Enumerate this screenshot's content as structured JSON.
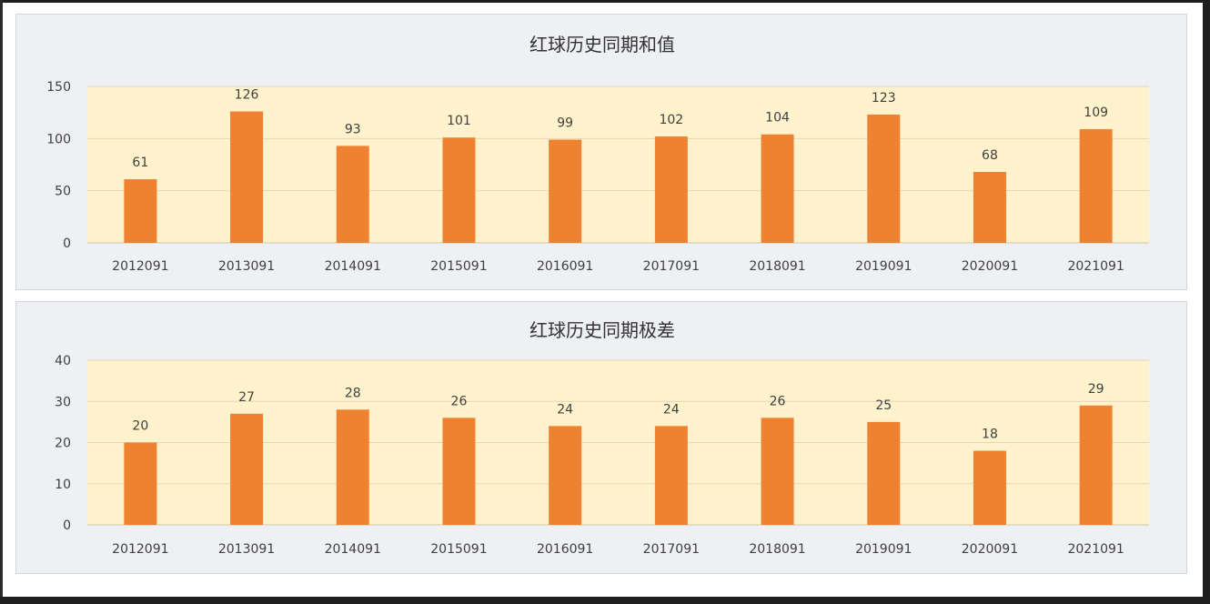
{
  "colors": {
    "bar": "#ee8230",
    "plot_bg": "#fff2cc",
    "panel_bg": "#eef0f3",
    "grid": "#e3d7b4"
  },
  "chart_data": [
    {
      "type": "bar",
      "title": "红球历史同期和值",
      "xlabel": "",
      "ylabel": "",
      "categories": [
        "2012091",
        "2013091",
        "2014091",
        "2015091",
        "2016091",
        "2017091",
        "2018091",
        "2019091",
        "2020091",
        "2021091"
      ],
      "values": [
        61,
        126,
        93,
        101,
        99,
        102,
        104,
        123,
        68,
        109
      ],
      "ylim": [
        0,
        150
      ],
      "yticks": [
        0,
        50,
        100,
        150
      ],
      "grid": true,
      "data_labels": true,
      "legend": "none"
    },
    {
      "type": "bar",
      "title": "红球历史同期极差",
      "xlabel": "",
      "ylabel": "",
      "categories": [
        "2012091",
        "2013091",
        "2014091",
        "2015091",
        "2016091",
        "2017091",
        "2018091",
        "2019091",
        "2020091",
        "2021091"
      ],
      "values": [
        20,
        27,
        28,
        26,
        24,
        24,
        26,
        25,
        18,
        29
      ],
      "ylim": [
        0,
        40
      ],
      "yticks": [
        0,
        10,
        20,
        30,
        40
      ],
      "grid": true,
      "data_labels": true,
      "legend": "none"
    }
  ]
}
